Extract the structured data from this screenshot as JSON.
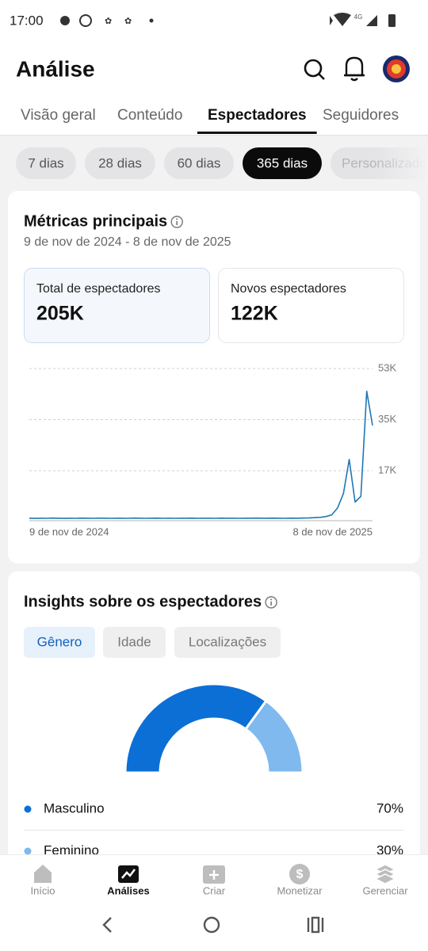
{
  "status_bar": {
    "time": "17:00",
    "network": "4G"
  },
  "header": {
    "title": "Análise"
  },
  "tabs": {
    "items": [
      "Visão geral",
      "Conteúdo",
      "Espectadores",
      "Seguidores"
    ],
    "active": 2
  },
  "period_chips": {
    "items": [
      "7 dias",
      "28 dias",
      "60 dias",
      "365 dias",
      "Personalizado"
    ],
    "active": 3
  },
  "key_metrics": {
    "title": "Métricas principais",
    "date_range": "9 de nov de 2024 - 8 de nov de 2025",
    "metrics": [
      {
        "label": "Total de espectadores",
        "value": "205K"
      },
      {
        "label": "Novos espectadores",
        "value": "122K"
      }
    ],
    "chart": {
      "type": "line",
      "color": "#1f78b4",
      "categories": [
        "9 de nov de 2024",
        null,
        null,
        null,
        null,
        null,
        null,
        null,
        null,
        null,
        null,
        null,
        null,
        null,
        null,
        null,
        null,
        null,
        null,
        null,
        null,
        null,
        null,
        null,
        null,
        null,
        null,
        null,
        null,
        null,
        null,
        null,
        null,
        null,
        null,
        null,
        null,
        null,
        null,
        null,
        null,
        null,
        null,
        null,
        null,
        null,
        null,
        null,
        null,
        null,
        null,
        null,
        null,
        null,
        null,
        null,
        null,
        null,
        null,
        "8 de nov de 2025"
      ],
      "values": [
        300,
        250,
        320,
        280,
        350,
        300,
        260,
        310,
        290,
        330,
        300,
        270,
        340,
        310,
        280,
        320,
        300,
        290,
        350,
        310,
        280,
        300,
        330,
        290,
        310,
        270,
        320,
        300,
        340,
        290,
        310,
        300,
        280,
        330,
        300,
        320,
        290,
        310,
        300,
        350,
        320,
        300,
        340,
        310,
        290,
        330,
        300,
        360,
        400,
        500,
        600,
        900,
        1500,
        4000,
        9000,
        21000,
        6000,
        8000,
        45000,
        33000
      ],
      "ylim": [
        0,
        53000
      ],
      "yticks": [
        {
          "value": 17000,
          "label": "17K"
        },
        {
          "value": 35000,
          "label": "35K"
        },
        {
          "value": 53000,
          "label": "53K"
        }
      ],
      "grid": true
    }
  },
  "insights": {
    "title": "Insights sobre os espectadores",
    "tabs": {
      "items": [
        "Gênero",
        "Idade",
        "Localizações"
      ],
      "active": 0
    },
    "chart": {
      "type": "pie",
      "categories": [
        "Masculino",
        "Feminino"
      ],
      "values": [
        70,
        30
      ],
      "value_labels": [
        "70%",
        "30%"
      ],
      "colors": [
        "#0b6fd6",
        "#7fb9ee"
      ]
    }
  },
  "bottom_nav": {
    "items": [
      "Início",
      "Análises",
      "Criar",
      "Monetizar",
      "Gerenciar"
    ],
    "active": 1
  }
}
